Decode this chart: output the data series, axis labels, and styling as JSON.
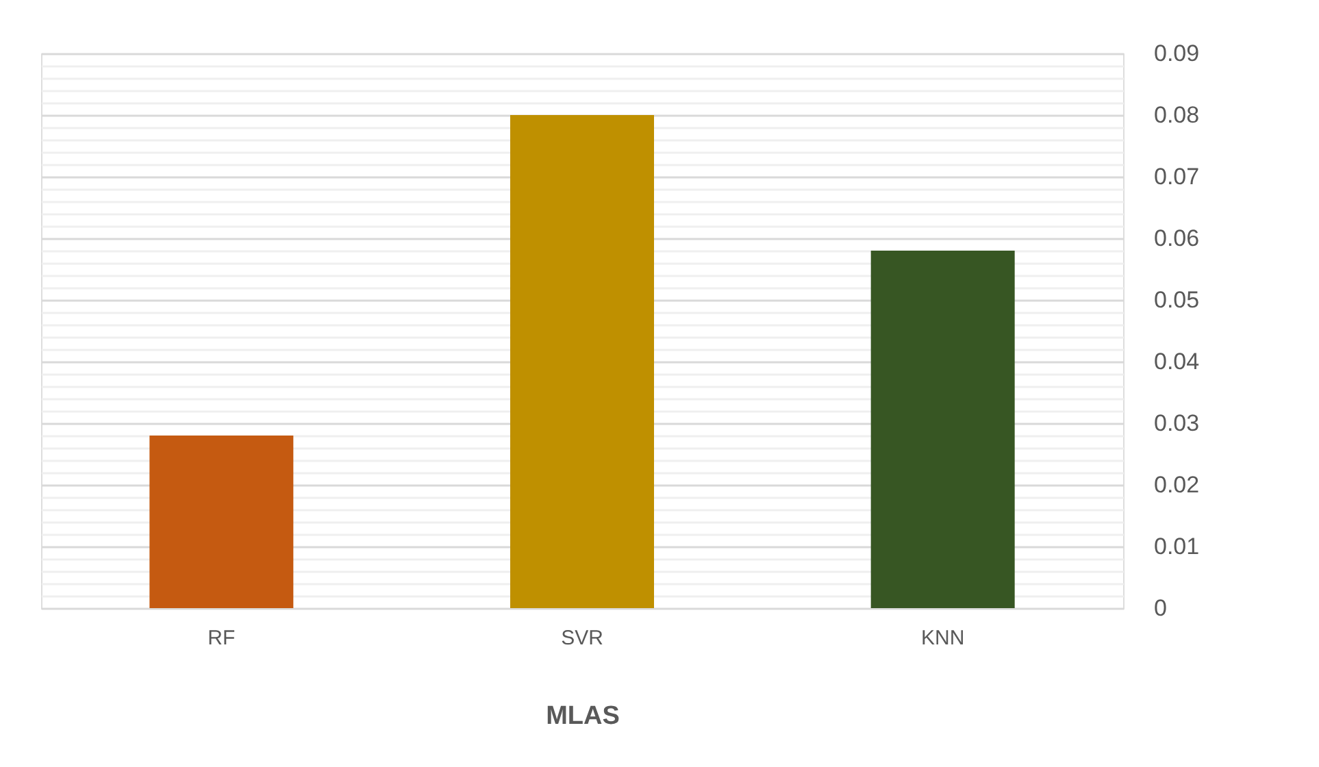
{
  "chart_data": {
    "type": "bar",
    "xlabel": "MLAS",
    "categories": [
      "RF",
      "SVR",
      "KNN"
    ],
    "values": [
      0.028,
      0.08,
      0.058
    ],
    "colors": [
      "#c55a11",
      "#bf9000",
      "#375623"
    ],
    "ylim": [
      0,
      0.09
    ],
    "yticks": [
      0,
      0.01,
      0.02,
      0.03,
      0.04,
      0.05,
      0.06,
      0.07,
      0.08,
      0.09
    ],
    "grid": "y"
  }
}
